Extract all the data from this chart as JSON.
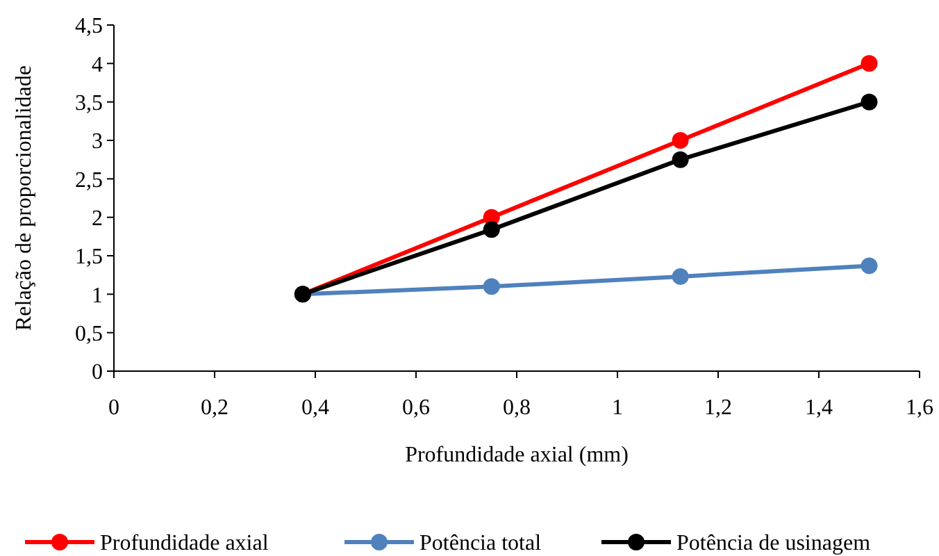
{
  "chart_data": {
    "type": "line",
    "xlabel": "Profundidade axial (mm)",
    "ylabel": "Relação de proporcionalidade",
    "x": [
      0.375,
      0.75,
      1.125,
      1.5
    ],
    "series": [
      {
        "name": "Profundidade axial",
        "color": "#ff0000",
        "values": [
          1,
          2,
          3,
          4
        ]
      },
      {
        "name": "Potência total",
        "color": "#4f81bd",
        "values": [
          1,
          1.1,
          1.23,
          1.37
        ]
      },
      {
        "name": "Potência de usinagem",
        "color": "#000000",
        "values": [
          1,
          1.84,
          2.75,
          3.5
        ]
      }
    ],
    "xlim": [
      0,
      1.6
    ],
    "xticks": [
      {
        "value": 0,
        "label": "0"
      },
      {
        "value": 0.2,
        "label": "0,2"
      },
      {
        "value": 0.4,
        "label": "0,4"
      },
      {
        "value": 0.6,
        "label": "0,6"
      },
      {
        "value": 0.8,
        "label": "0,8"
      },
      {
        "value": 1,
        "label": "1"
      },
      {
        "value": 1.2,
        "label": "1,2"
      },
      {
        "value": 1.4,
        "label": "1,4"
      },
      {
        "value": 1.6,
        "label": "1,6"
      }
    ],
    "ylim": [
      0,
      4.5
    ],
    "yticks": [
      {
        "value": 0,
        "label": "0"
      },
      {
        "value": 0.5,
        "label": "0,5"
      },
      {
        "value": 1,
        "label": "1"
      },
      {
        "value": 1.5,
        "label": "1,5"
      },
      {
        "value": 2,
        "label": "2"
      },
      {
        "value": 2.5,
        "label": "2,5"
      },
      {
        "value": 3,
        "label": "3"
      },
      {
        "value": 3.5,
        "label": "3,5"
      },
      {
        "value": 4,
        "label": "4"
      },
      {
        "value": 4.5,
        "label": "4,5"
      }
    ],
    "grid": false,
    "legend": "bottom",
    "marker": "circle",
    "line_style": "solid"
  }
}
